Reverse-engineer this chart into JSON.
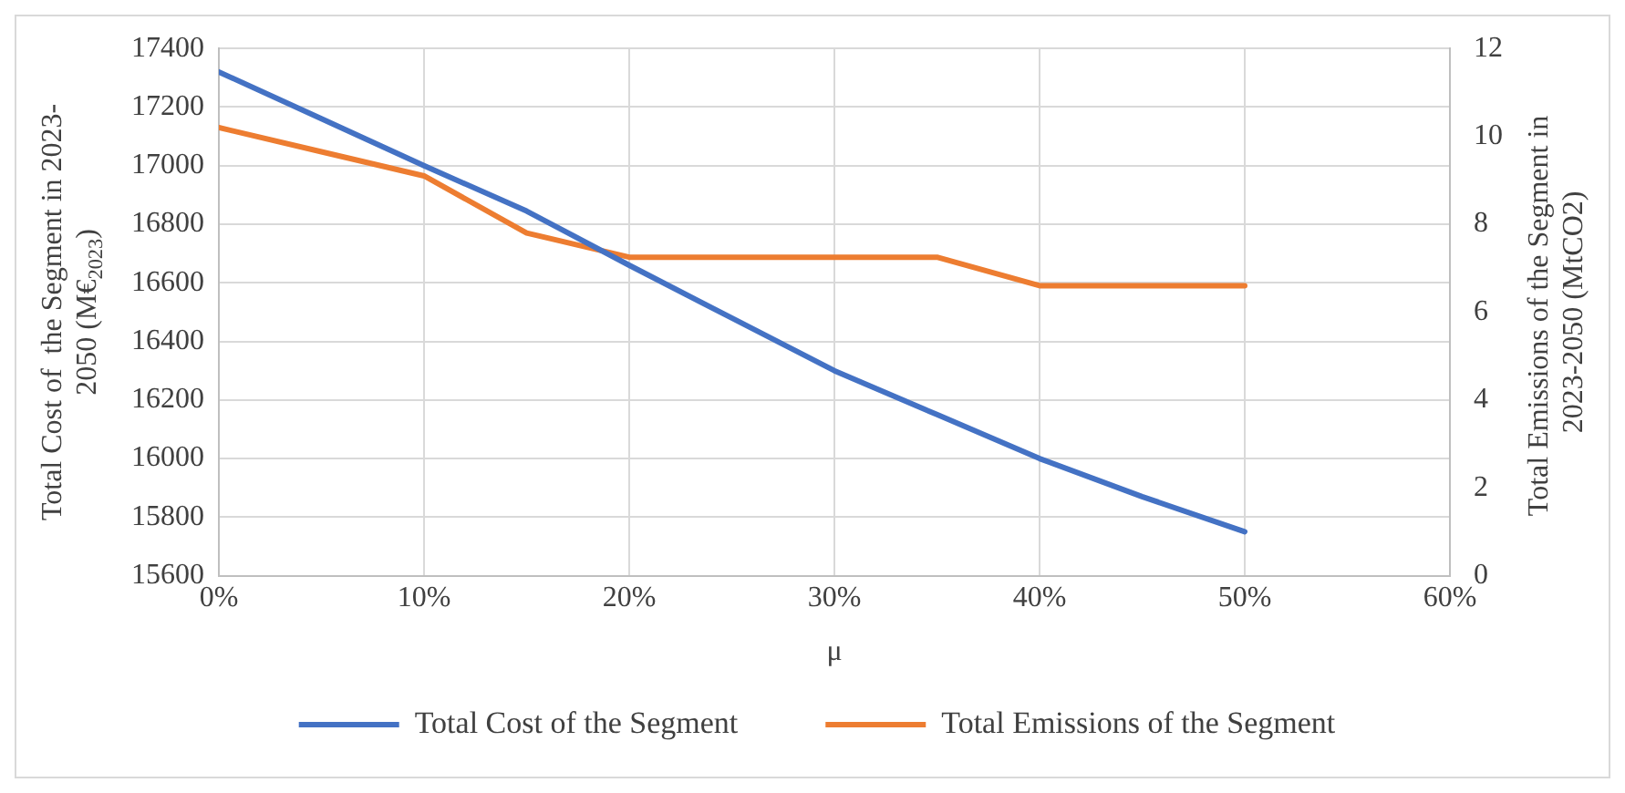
{
  "chart_data": {
    "type": "line",
    "xlabel": "μ",
    "ylabel": "Total Cost of  the Segment in 2023-2050 (M€$_{2023}$)",
    "y2label": "Total Emissions of the Segment in 2023-2050 (MtCO2)",
    "x": [
      0,
      5,
      10,
      15,
      20,
      25,
      30,
      35,
      40,
      45,
      50
    ],
    "series": [
      {
        "name": "Total Cost of the Segment",
        "color": "#4472c4",
        "values": [
          17320,
          17160,
          17000,
          16845,
          16660,
          16480,
          16300,
          16150,
          16000,
          15870,
          15750
        ]
      },
      {
        "name": "Total Emissions of the Segment",
        "color": "#ed7d31",
        "axis": "y2",
        "values": [
          10.2,
          9.65,
          9.1,
          7.8,
          7.25,
          7.25,
          7.25,
          7.25,
          6.6,
          6.6,
          6.6
        ]
      }
    ],
    "xlim": [
      0,
      60
    ],
    "xticks": [
      {
        "value": 0,
        "label": "0%"
      },
      {
        "value": 10,
        "label": "10%"
      },
      {
        "value": 20,
        "label": "20%"
      },
      {
        "value": 30,
        "label": "30%"
      },
      {
        "value": 40,
        "label": "40%"
      },
      {
        "value": 50,
        "label": "50%"
      },
      {
        "value": 60,
        "label": "60%"
      }
    ],
    "ylim": [
      15600,
      17400
    ],
    "yticks": [
      15600,
      15800,
      16000,
      16200,
      16400,
      16600,
      16800,
      17000,
      17200,
      17400
    ],
    "y2lim": [
      0,
      12
    ],
    "y2ticks": [
      0,
      2,
      4,
      6,
      8,
      10,
      12
    ],
    "grid": true,
    "legend": "bottom",
    "marker": "none",
    "line_style": "solid"
  }
}
